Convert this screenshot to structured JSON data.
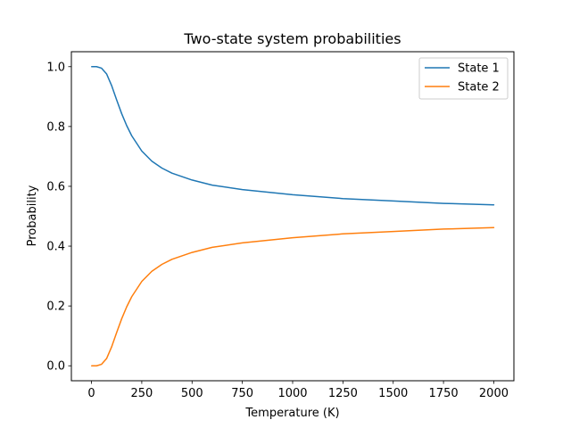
{
  "chart_data": {
    "type": "line",
    "title": "Two-state system probabilities",
    "xlabel": "Temperature (K)",
    "ylabel": "Probability",
    "xlim": [
      -100,
      2100
    ],
    "ylim": [
      -0.05,
      1.05
    ],
    "xticks": [
      0,
      250,
      500,
      750,
      1000,
      1250,
      1500,
      1750,
      2000
    ],
    "yticks": [
      0.0,
      0.2,
      0.4,
      0.6,
      0.8,
      1.0
    ],
    "xtick_labels": [
      "0",
      "250",
      "500",
      "750",
      "1000",
      "1250",
      "1500",
      "1750",
      "2000"
    ],
    "ytick_labels": [
      "0.0",
      "0.2",
      "0.4",
      "0.6",
      "0.8",
      "1.0"
    ],
    "grid": false,
    "legend_position": "top-right",
    "series": [
      {
        "name": "State 1",
        "color": "#1f77b4",
        "x": [
          1,
          25,
          50,
          75,
          100,
          125,
          150,
          175,
          200,
          250,
          300,
          350,
          400,
          500,
          600,
          750,
          1000,
          1250,
          1500,
          1750,
          2000
        ],
        "y": [
          1.0,
          1.0,
          0.995,
          0.976,
          0.937,
          0.889,
          0.843,
          0.803,
          0.769,
          0.718,
          0.684,
          0.661,
          0.644,
          0.621,
          0.604,
          0.589,
          0.572,
          0.559,
          0.551,
          0.543,
          0.538
        ]
      },
      {
        "name": "State 2",
        "color": "#ff7f0e",
        "x": [
          1,
          25,
          50,
          75,
          100,
          125,
          150,
          175,
          200,
          250,
          300,
          350,
          400,
          500,
          600,
          750,
          1000,
          1250,
          1500,
          1750,
          2000
        ],
        "y": [
          0.0,
          0.0,
          0.005,
          0.024,
          0.063,
          0.111,
          0.157,
          0.197,
          0.231,
          0.282,
          0.316,
          0.339,
          0.356,
          0.379,
          0.396,
          0.411,
          0.428,
          0.441,
          0.449,
          0.457,
          0.462
        ]
      }
    ]
  }
}
